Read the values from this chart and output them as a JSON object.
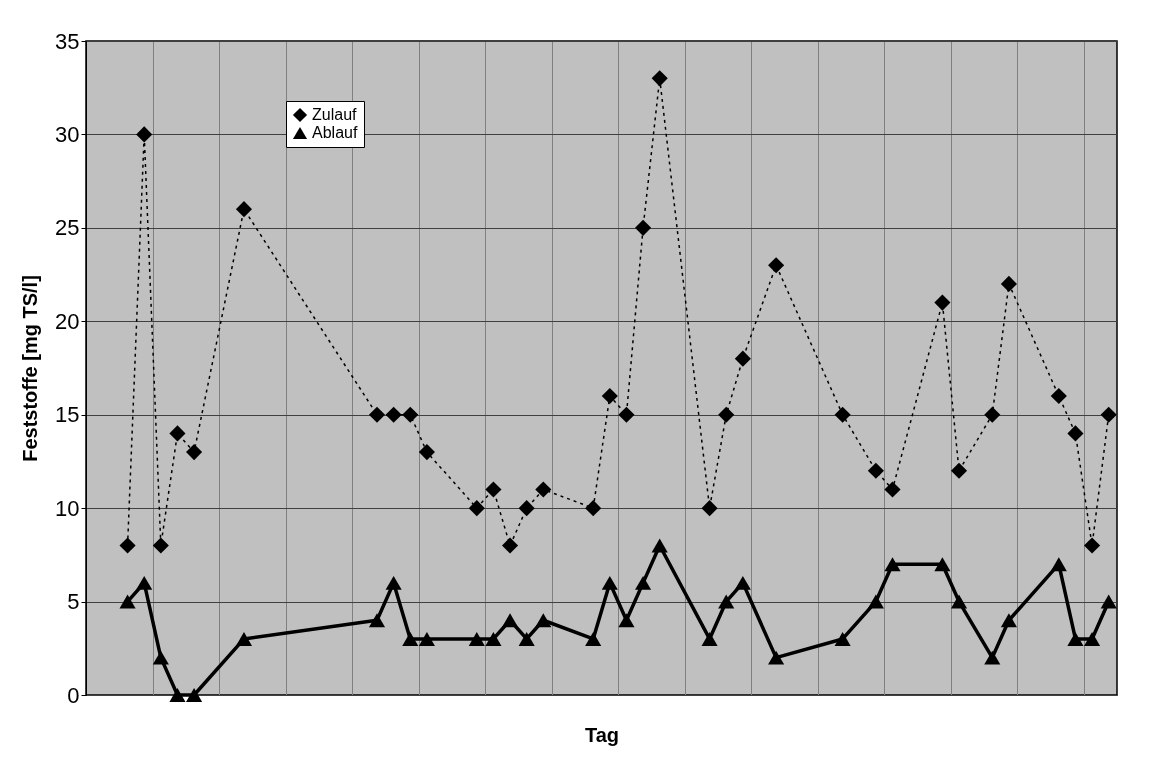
{
  "chart_data": {
    "type": "line",
    "xlabel": "Tag",
    "ylabel": "Feststoffe  [mg TS/l]",
    "categories": [
      null,
      null,
      null,
      null,
      null,
      null,
      null,
      null,
      null,
      null,
      null,
      null,
      null,
      null,
      null,
      null,
      null,
      null,
      null,
      null,
      null,
      null,
      null,
      null,
      null,
      null,
      null,
      null,
      null,
      null,
      null,
      null,
      null,
      null,
      null,
      null,
      null,
      null,
      null,
      null,
      null,
      null,
      null,
      null,
      null,
      null,
      null,
      null,
      null,
      null,
      null,
      null,
      null,
      null,
      null,
      null,
      null,
      null,
      null,
      null,
      null,
      null
    ],
    "ylim": [
      0,
      35
    ],
    "yticks": [
      0,
      5,
      10,
      15,
      20,
      25,
      30,
      35
    ],
    "grid": true,
    "legend": "top left",
    "series": [
      {
        "name": "Zulauf",
        "color": "#000000",
        "marker": "diamond",
        "line_style": "dotted",
        "values": [
          null,
          null,
          8,
          30,
          8,
          14,
          13,
          null,
          null,
          26,
          null,
          null,
          null,
          null,
          null,
          null,
          null,
          15,
          15,
          15,
          13,
          null,
          null,
          10,
          11,
          8,
          10,
          11,
          null,
          null,
          10,
          16,
          15,
          25,
          33,
          null,
          null,
          10,
          15,
          18,
          null,
          23,
          null,
          null,
          null,
          15,
          null,
          12,
          11,
          null,
          null,
          21,
          12,
          null,
          15,
          22,
          null,
          null,
          16,
          14,
          8,
          15
        ]
      },
      {
        "name": "Ablauf",
        "color": "#000000",
        "marker": "triangle",
        "line_style": "solid",
        "values": [
          null,
          null,
          5,
          6,
          2,
          0,
          0,
          null,
          null,
          3,
          null,
          null,
          null,
          null,
          null,
          null,
          null,
          4,
          6,
          3,
          3,
          null,
          null,
          3,
          3,
          4,
          3,
          4,
          null,
          null,
          3,
          6,
          4,
          6,
          8,
          null,
          null,
          3,
          5,
          6,
          null,
          2,
          null,
          null,
          null,
          3,
          null,
          5,
          7,
          null,
          null,
          7,
          5,
          null,
          2,
          4,
          null,
          null,
          7,
          3,
          3,
          5
        ]
      }
    ]
  }
}
